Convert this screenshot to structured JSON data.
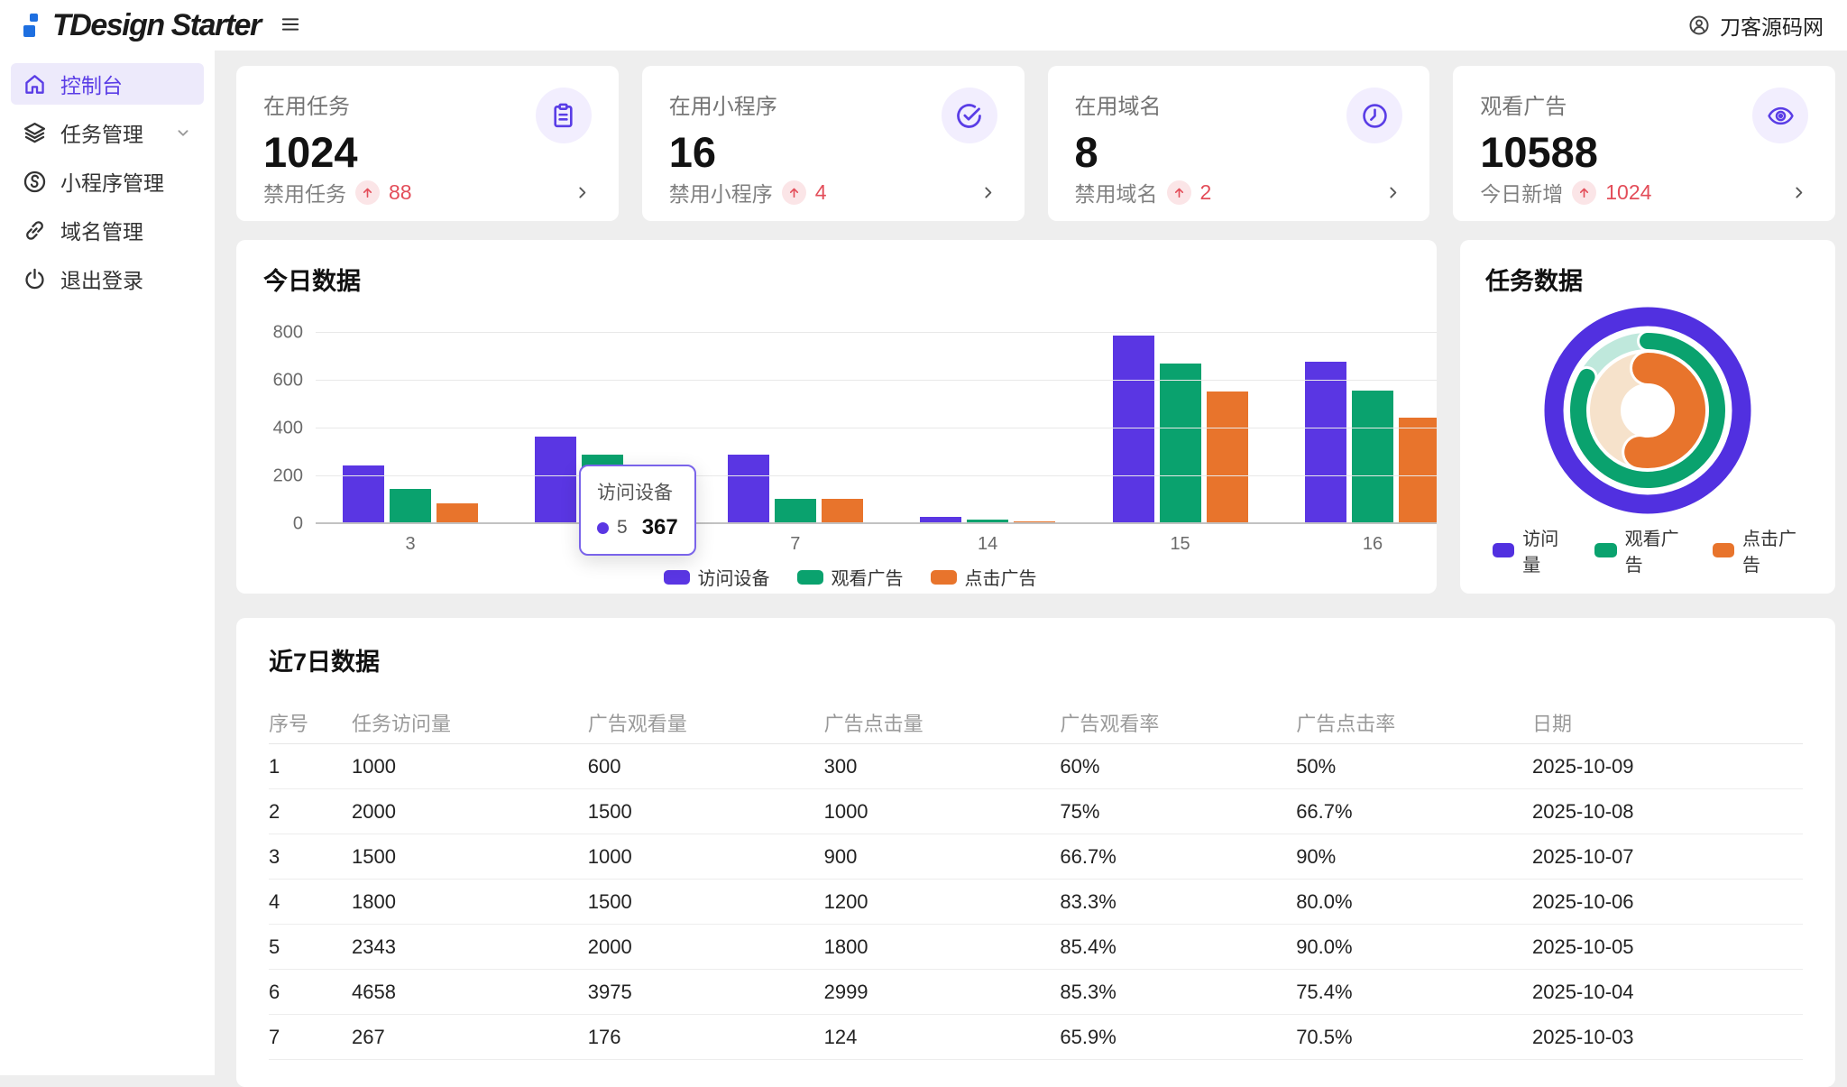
{
  "header": {
    "brand": "TDesign Starter",
    "user": {
      "name": "刀客源码网"
    }
  },
  "sidebar": {
    "items": [
      {
        "key": "dashboard",
        "label": "控制台",
        "icon": "home-icon",
        "active": true,
        "chevron": false
      },
      {
        "key": "tasks",
        "label": "任务管理",
        "icon": "layers-icon",
        "active": false,
        "chevron": true
      },
      {
        "key": "miniprogram",
        "label": "小程序管理",
        "icon": "miniprogram-icon",
        "active": false,
        "chevron": false
      },
      {
        "key": "domains",
        "label": "域名管理",
        "icon": "link-icon",
        "active": false,
        "chevron": false
      },
      {
        "key": "logout",
        "label": "退出登录",
        "icon": "power-icon",
        "active": false,
        "chevron": false
      }
    ]
  },
  "stat_cards": [
    {
      "key": "active-tasks",
      "label": "在用任务",
      "value": "1024",
      "icon": "clipboard-icon",
      "footer_label": "禁用任务",
      "footer_value": "88"
    },
    {
      "key": "active-miniprograms",
      "label": "在用小程序",
      "value": "16",
      "icon": "check-circle-icon",
      "footer_label": "禁用小程序",
      "footer_value": "4"
    },
    {
      "key": "active-domains",
      "label": "在用域名",
      "value": "8",
      "icon": "clock-icon",
      "footer_label": "禁用域名",
      "footer_value": "2"
    },
    {
      "key": "ad-views",
      "label": "观看广告",
      "value": "10588",
      "icon": "eye-icon",
      "footer_label": "今日新增",
      "footer_value": "1024"
    }
  ],
  "chart_data": [
    {
      "type": "bar",
      "title": "今日数据",
      "categories": [
        "3",
        "5",
        "7",
        "14",
        "15",
        "16"
      ],
      "series": [
        {
          "name": "访问设备",
          "color": "#5A36E3",
          "values": [
            245,
            367,
            290,
            30,
            790,
            680
          ]
        },
        {
          "name": "观看广告",
          "color": "#0AA26E",
          "values": [
            148,
            290,
            105,
            18,
            670,
            560
          ]
        },
        {
          "name": "点击广告",
          "color": "#E8742C",
          "values": [
            88,
            245,
            105,
            10,
            555,
            445
          ]
        }
      ],
      "ylim": [
        0,
        800
      ],
      "yticks": [
        0,
        200,
        400,
        600,
        800
      ],
      "grid": true,
      "legend_position": "bottom",
      "tooltip": {
        "name": "访问设备",
        "category": "5",
        "value": "367"
      }
    },
    {
      "type": "pie",
      "title": "任务数据",
      "rings": [
        {
          "name": "访问量",
          "color": "#5130E0",
          "pct": 100,
          "rest_color": "#5130E0"
        },
        {
          "name": "观看广告",
          "color": "#0AA26E",
          "pct": 83,
          "rest_color": "#BFE8DC"
        },
        {
          "name": "点击广告",
          "color": "#E8742C",
          "pct": 53,
          "rest_color": "#F6E2CB"
        }
      ],
      "legend_position": "bottom"
    }
  ],
  "table": {
    "title": "近7日数据",
    "columns": [
      "序号",
      "任务访问量",
      "广告观看量",
      "广告点击量",
      "广告观看率",
      "广告点击率",
      "日期"
    ],
    "rows": [
      [
        "1",
        "1000",
        "600",
        "300",
        "60%",
        "50%",
        "2025-10-09"
      ],
      [
        "2",
        "2000",
        "1500",
        "1000",
        "75%",
        "66.7%",
        "2025-10-08"
      ],
      [
        "3",
        "1500",
        "1000",
        "900",
        "66.7%",
        "90%",
        "2025-10-07"
      ],
      [
        "4",
        "1800",
        "1500",
        "1200",
        "83.3%",
        "80.0%",
        "2025-10-06"
      ],
      [
        "5",
        "2343",
        "2000",
        "1800",
        "85.4%",
        "90.0%",
        "2025-10-05"
      ],
      [
        "6",
        "4658",
        "3975",
        "2999",
        "85.3%",
        "75.4%",
        "2025-10-04"
      ],
      [
        "7",
        "267",
        "176",
        "124",
        "65.9%",
        "70.5%",
        "2025-10-03"
      ]
    ]
  },
  "colors": {
    "brand_purple": "#5A3DE6",
    "green": "#0AA26E",
    "orange": "#E8742C",
    "red": "#E34D59",
    "badge_bg": "#FBE5E7",
    "icon_circle_bg": "#F2EEFE",
    "sidebar_active_bg": "#EDEAFB",
    "logo_blue": "#1E6FE0",
    "page_bg": "#EEEEEE"
  }
}
